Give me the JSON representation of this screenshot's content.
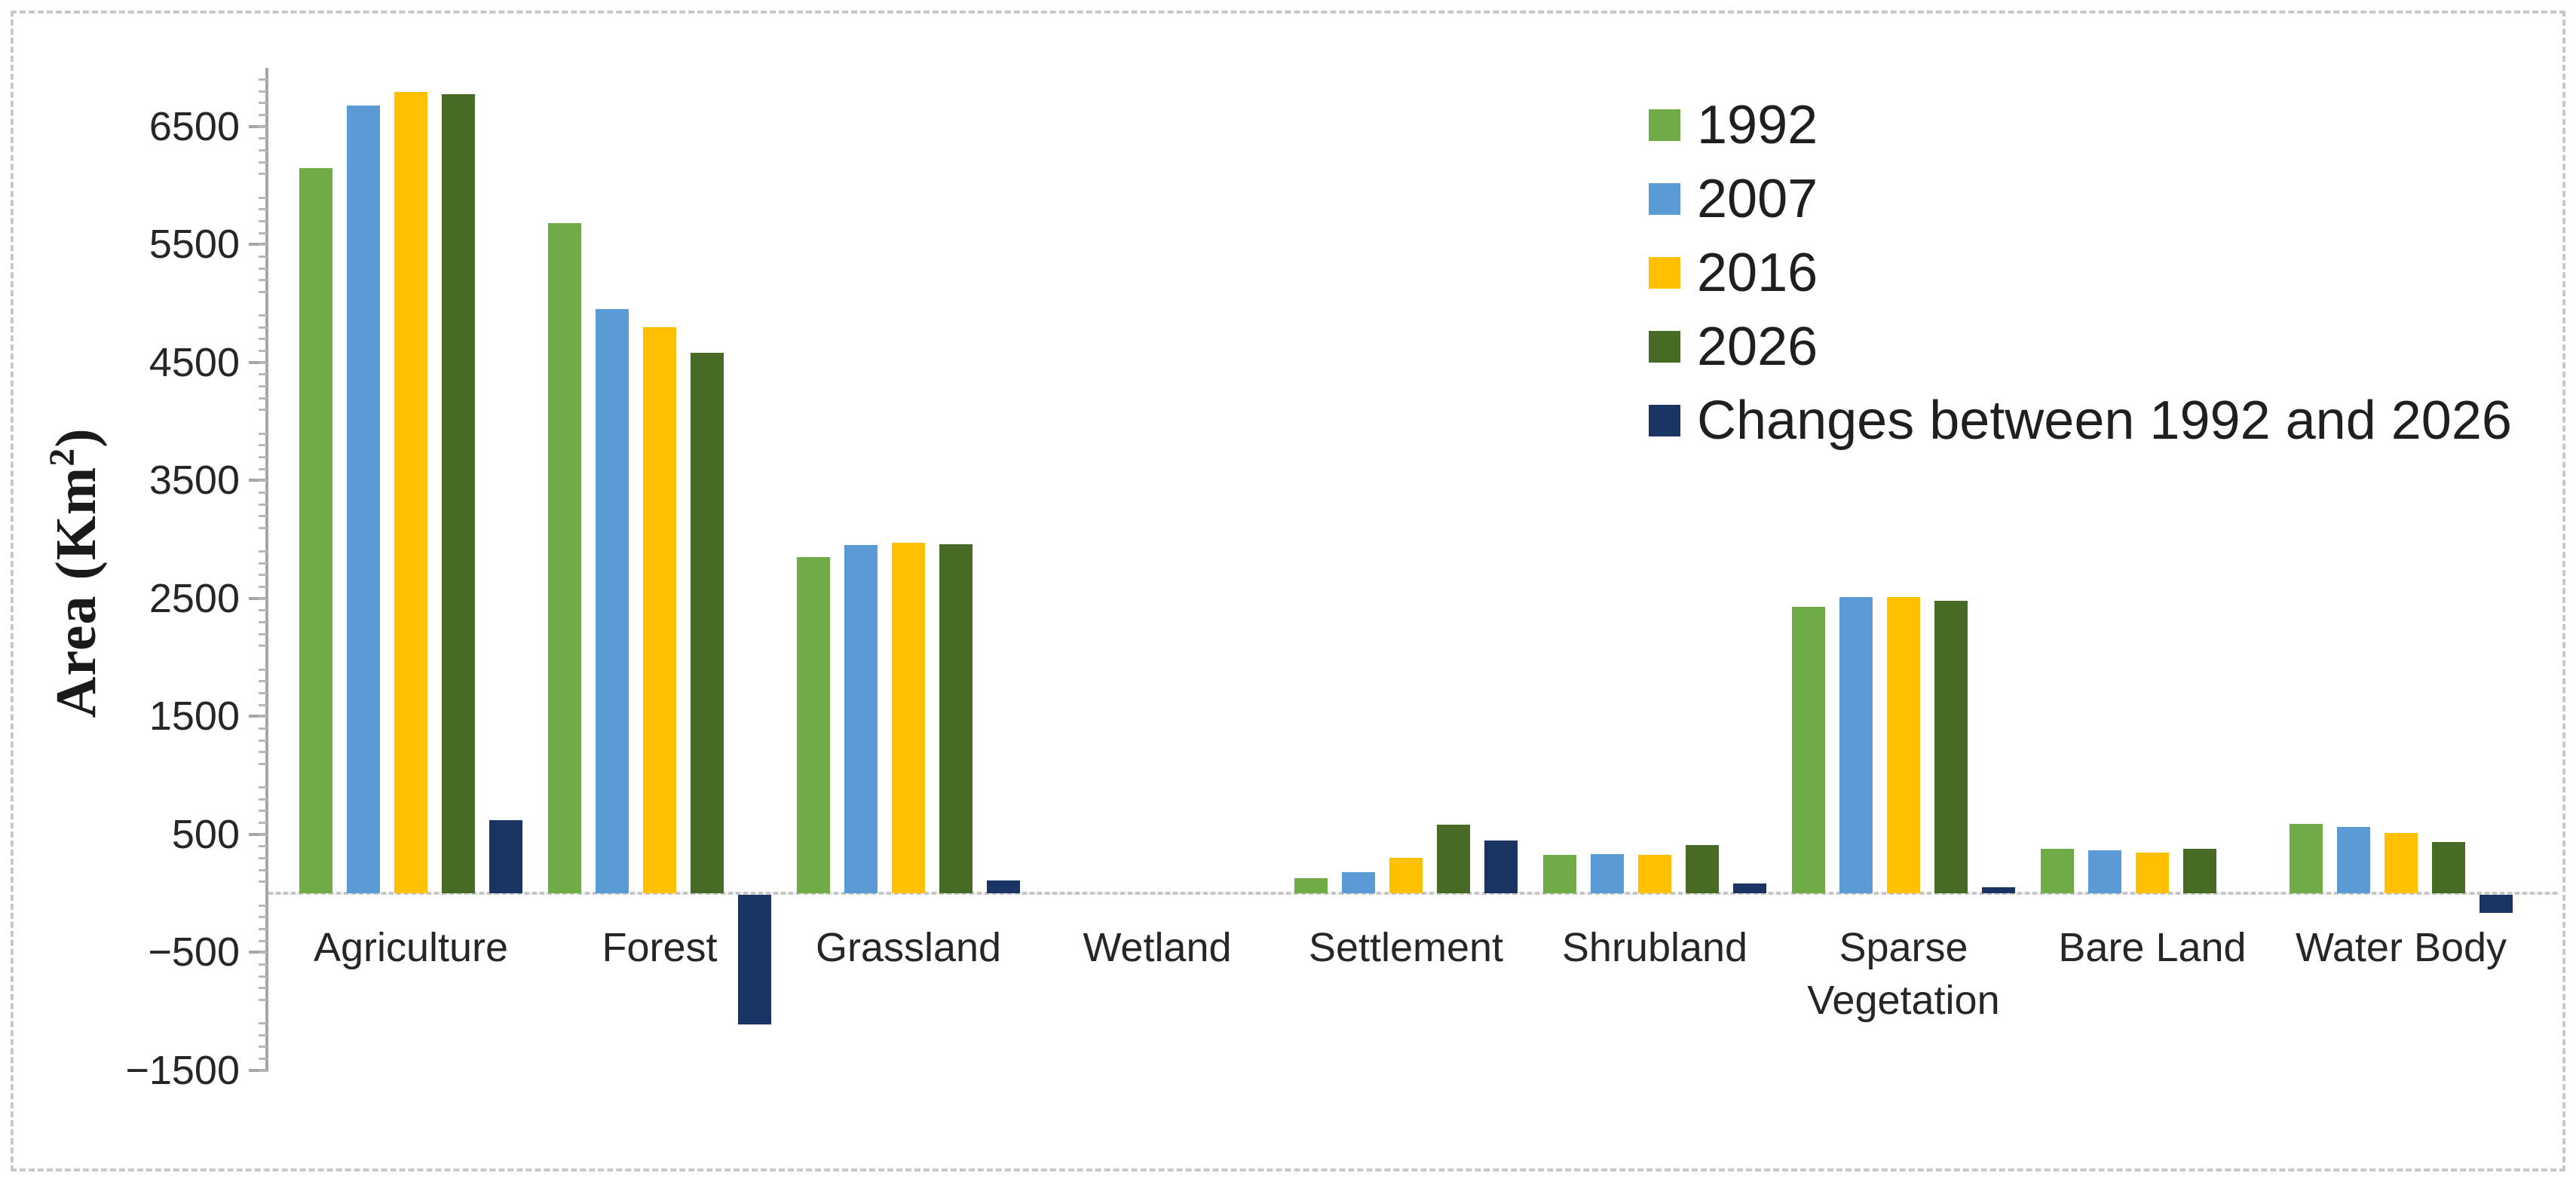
{
  "chart_data": {
    "type": "bar",
    "title": "",
    "xlabel": "",
    "ylabel": "Area (Km²)",
    "ylabel_parts": {
      "main": "Area (Km",
      "sup": "2",
      "close": ")"
    },
    "categories": [
      "Agriculture",
      "Forest",
      "Grassland",
      "Wetland",
      "Settlement",
      "Shrubland",
      "Sparse Vegetation",
      "Bare Land",
      "Water Body"
    ],
    "series": [
      {
        "name": "1992",
        "color": "#6FAC47",
        "values": [
          6150,
          5680,
          2850,
          0,
          130,
          325,
          2430,
          380,
          590
        ]
      },
      {
        "name": "2007",
        "color": "#5B9BD5",
        "values": [
          6680,
          4950,
          2950,
          0,
          180,
          330,
          2510,
          365,
          560
        ]
      },
      {
        "name": "2016",
        "color": "#FFC000",
        "values": [
          6790,
          4800,
          2970,
          0,
          300,
          325,
          2510,
          345,
          510
        ]
      },
      {
        "name": "2026",
        "color": "#476B24",
        "values": [
          6770,
          4580,
          2960,
          0,
          580,
          410,
          2480,
          380,
          435
        ]
      },
      {
        "name": "Changes between 1992 and 2026",
        "color": "#1A3464",
        "values": [
          620,
          -1100,
          110,
          0,
          450,
          85,
          50,
          0,
          -155
        ]
      }
    ],
    "ylim": [
      -1500,
      7000
    ],
    "ytick_values": [
      6500,
      5500,
      4500,
      3500,
      2500,
      1500,
      500,
      -500,
      -1500
    ],
    "ytick_labels": [
      "6500",
      "5500",
      "4500",
      "3500",
      "2500",
      "1500",
      "500",
      "−500",
      "−1500"
    ],
    "y_major_unit": 1000,
    "y_minor_unit": 100,
    "grid": false,
    "legend_position": "upper right",
    "axis_color": "#A6A6A6",
    "baseline_color": "#C6C6C6",
    "text_color": "#262626"
  }
}
